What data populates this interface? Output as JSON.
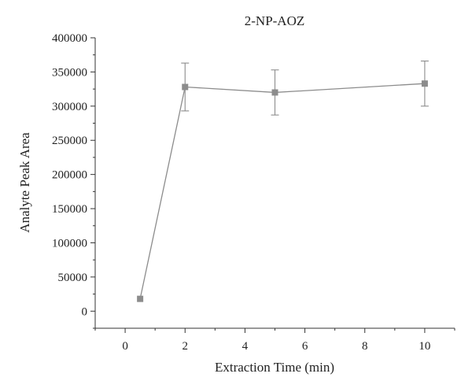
{
  "chart_data": {
    "type": "line",
    "title": "2-NP-AOZ",
    "xlabel": "Extraction Time (min)",
    "ylabel": "Analyte Peak Area",
    "xlim": [
      -1,
      11
    ],
    "ylim": [
      -25000,
      400000
    ],
    "x_ticks": [
      0,
      2,
      4,
      6,
      8,
      10
    ],
    "x_tick_labels": [
      "0",
      "2",
      "4",
      "6",
      "8",
      "10"
    ],
    "y_ticks": [
      0,
      50000,
      100000,
      150000,
      200000,
      250000,
      300000,
      350000,
      400000
    ],
    "y_tick_labels": [
      "0",
      "50000",
      "100000",
      "150000",
      "200000",
      "250000",
      "300000",
      "350000",
      "400000"
    ],
    "grid": false,
    "series": [
      {
        "color": "#8c8c8c",
        "marker": "square",
        "x": [
          0.5,
          2,
          5,
          10
        ],
        "y": [
          18000,
          328000,
          320000,
          333000
        ],
        "error": [
          0,
          35000,
          33000,
          33000
        ]
      }
    ]
  }
}
